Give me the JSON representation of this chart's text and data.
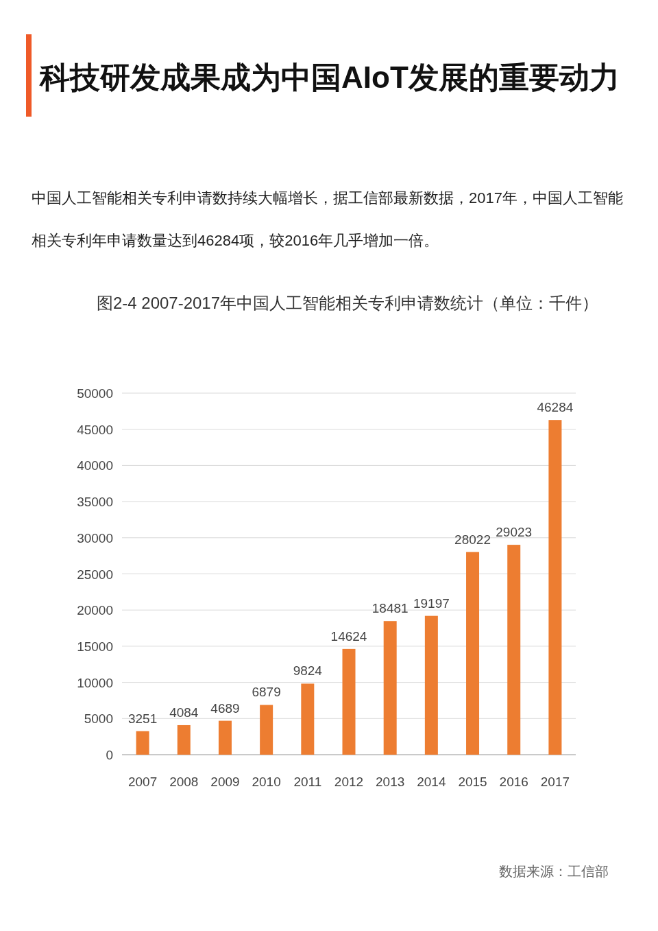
{
  "chart_data": {
    "type": "bar",
    "title": "科技研发成果成为中国AIoT发展的重要动力",
    "subtitle": "中国人工智能相关专利申请数持续大幅增长，据工信部最新数据，2017年，中国人工智能相关专利年申请数量达到46284项，较2016年几乎增加一倍。",
    "categories": [
      "2007",
      "2008",
      "2009",
      "2010",
      "2011",
      "2012",
      "2013",
      "2014",
      "2015",
      "2016",
      "2017"
    ],
    "values": [
      3251,
      4084,
      4689,
      6879,
      9824,
      14624,
      18481,
      19197,
      28022,
      29023,
      46284
    ],
    "color": "#ed7d31",
    "ylim": [
      0,
      50000
    ],
    "yticks": [
      0,
      5000,
      10000,
      15000,
      20000,
      25000,
      30000,
      35000,
      40000,
      45000,
      50000
    ],
    "grid": "y",
    "data_labels": true,
    "annotations": [
      "图2-4 2007-2017年中国人工智能相关专利申请数统计（单位：千件）",
      "数据来源：工信部"
    ]
  }
}
